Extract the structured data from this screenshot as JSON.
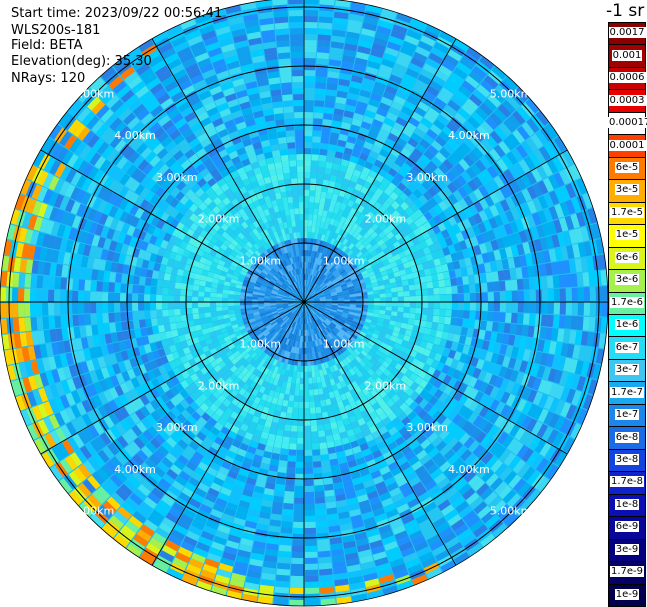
{
  "header": {
    "start_time": "Start time: 2023/09/22 00:56:41",
    "site": "WLS200s-181",
    "field": "Field: BETA",
    "elevation": "Elevation(deg): 35.30",
    "nrays": "NRays: 120"
  },
  "colorbar": {
    "title": "-1 sr",
    "labels": [
      "0.0017",
      "0.001",
      "0.0006",
      "0.0003",
      "0.00017",
      "0.0001",
      "6e-5",
      "3e-5",
      "1.7e-5",
      "1e-5",
      "6e-6",
      "3e-6",
      "1.7e-6",
      "1e-6",
      "6e-7",
      "3e-7",
      "1.7e-7",
      "1e-7",
      "6e-8",
      "3e-8",
      "1.7e-8",
      "1e-8",
      "6e-9",
      "3e-9",
      "1.7e-9",
      "1e-9"
    ],
    "colors": [
      "#8b0000",
      "#a00000",
      "#c80000",
      "#e60000",
      "#ffffff",
      "#ff4000",
      "#ff7a00",
      "#ffad00",
      "#ffd800",
      "#ffff00",
      "#d9f51c",
      "#a6f04d",
      "#66f0a0",
      "#00ffff",
      "#22ddf5",
      "#3ec6f0",
      "#1aa8f0",
      "#1b87ea",
      "#1a6ce6",
      "#1444e0",
      "#1022cc",
      "#0c10b4",
      "#09069a",
      "#050080",
      "#040066",
      "#02004d"
    ]
  },
  "chart_data": {
    "type": "heatmap",
    "projection": "polar PPI (plan position indicator)",
    "field": "BETA",
    "units": "-1 sr",
    "elevation_deg": 35.3,
    "n_rays": 120,
    "range_rings_km": [
      1,
      2,
      3,
      4,
      5
    ],
    "range_ring_labels": [
      "1.00km",
      "2.00km",
      "3.00km",
      "4.00km",
      "5.00km"
    ],
    "radial_spokes_deg": [
      0,
      30,
      60,
      90,
      120,
      150,
      180,
      210,
      240,
      270,
      300,
      330
    ],
    "max_range_km": 5.2,
    "color_scale": "log",
    "value_range": [
      1e-09,
      0.0017
    ],
    "dominant_value_bands": [
      {
        "range_km": [
          0,
          1.0
        ],
        "approx_value": 1e-07
      },
      {
        "range_km": [
          1.0,
          2.5
        ],
        "approx_value": 1e-06
      },
      {
        "range_km": [
          2.5,
          5.2
        ],
        "approx_value": 6e-07
      },
      {
        "range_km": [
          4.8,
          5.2
        ],
        "sector": "west / southwest edge",
        "approx_value": 1e-05
      }
    ]
  }
}
